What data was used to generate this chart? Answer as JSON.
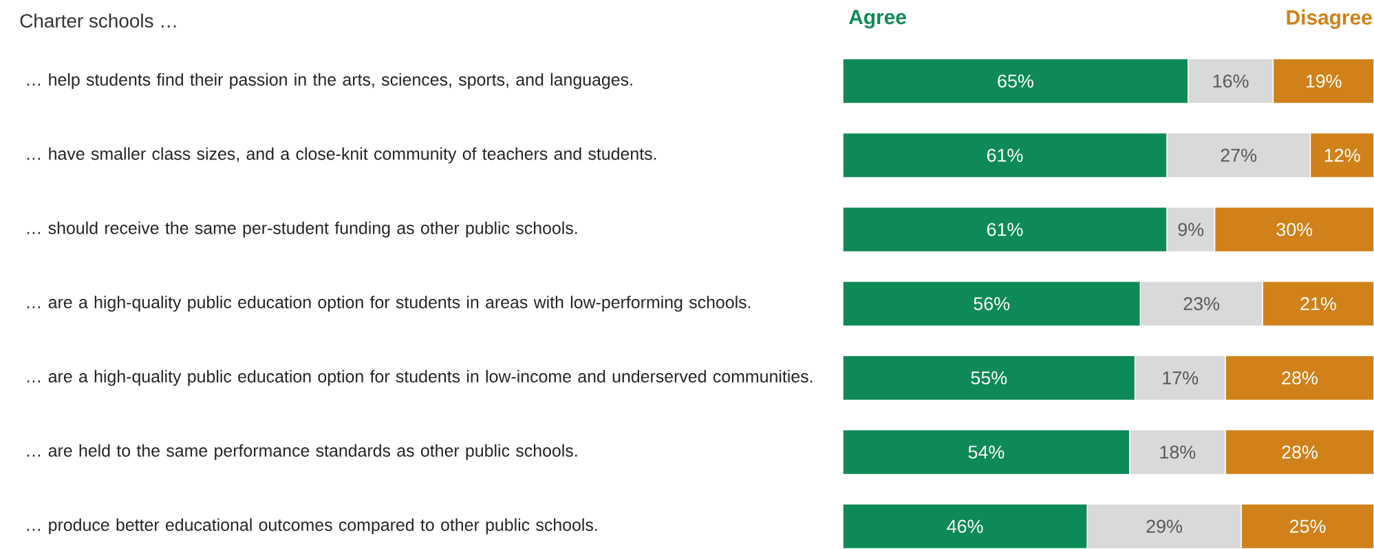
{
  "chart_data": {
    "type": "bar",
    "orientation": "horizontal",
    "stacked": true,
    "title": "Charter schools …",
    "categories": [
      "… help students find their passion in the arts, sciences, sports, and languages.",
      "… have smaller class sizes, and a close-knit community of teachers and students.",
      "… should receive the same per-student funding as other public schools.",
      "… are a high-quality public education option for students in areas with low-performing schools.",
      "… are a high-quality public education option for students in low-income and underserved communities.",
      "… are held to the same performance standards as other public schools.",
      "… produce better educational outcomes compared to other public schools."
    ],
    "series": [
      {
        "name": "Agree",
        "color": "#0e8a56",
        "values": [
          65,
          61,
          61,
          56,
          55,
          54,
          46
        ],
        "value_labels": [
          "65%",
          "61%",
          "61%",
          "56%",
          "55%",
          "54%",
          "46%"
        ]
      },
      {
        "color": "#d9d9d9",
        "values": [
          16,
          27,
          9,
          23,
          17,
          18,
          29
        ],
        "value_labels": [
          "16%",
          "27%",
          "9%",
          "23%",
          "17%",
          "18%",
          "29%"
        ]
      },
      {
        "name": "Disagree",
        "color": "#d08119",
        "values": [
          19,
          12,
          30,
          21,
          28,
          28,
          25
        ],
        "value_labels": [
          "19%",
          "12%",
          "30%",
          "21%",
          "28%",
          "28%",
          "25%"
        ]
      }
    ],
    "xlim": [
      0,
      100
    ],
    "tick_labels": "y"
  }
}
